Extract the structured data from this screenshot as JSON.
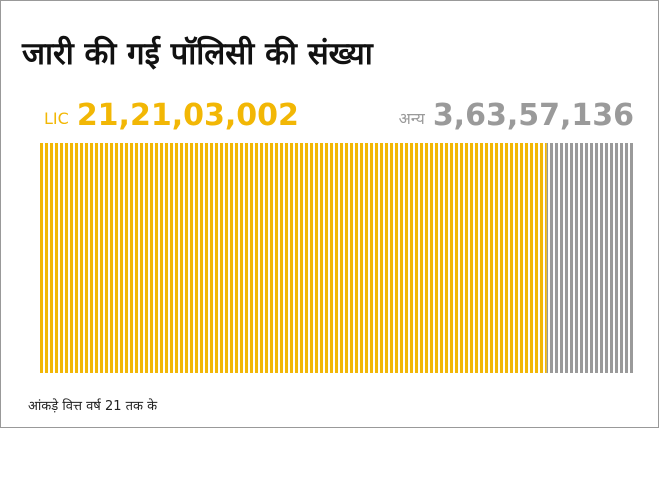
{
  "chart_data": {
    "type": "bar",
    "title": "जारी की गई पॉलिसी की संख्या",
    "series": [
      {
        "name": "LIC",
        "color": "#f2b705",
        "values": [
          212103002
        ],
        "value_labels": [
          "21,21,03,002"
        ]
      },
      {
        "name": "अन्य",
        "color": "#9a9a9a",
        "values": [
          36357136
        ],
        "value_labels": [
          "3,63,57,136"
        ]
      }
    ],
    "note": "आंकड़े वित्त वर्ष 21 तक के"
  }
}
